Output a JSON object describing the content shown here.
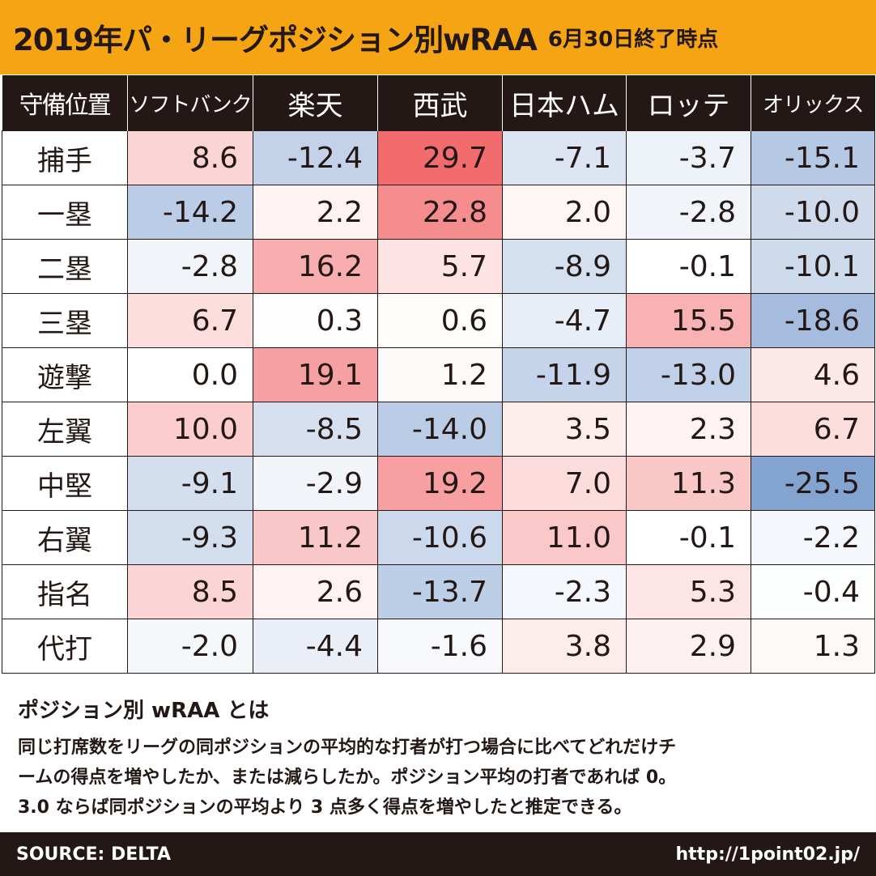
{
  "header": {
    "title": "2019年パ・リーグポジション別wRAA",
    "subtitle": "6月30日終了時点"
  },
  "chart_data": {
    "type": "table",
    "corner_label": "守備位置",
    "columns": [
      "ソフトバンク",
      "楽天",
      "西武",
      "日本ハム",
      "ロッテ",
      "オリックス"
    ],
    "rows": [
      {
        "label": "捕手",
        "values": [
          "8.6",
          "-12.4",
          "29.7",
          "-7.1",
          "-3.7",
          "-15.1"
        ]
      },
      {
        "label": "一塁",
        "values": [
          "-14.2",
          "2.2",
          "22.8",
          "2.0",
          "-2.8",
          "-10.0"
        ]
      },
      {
        "label": "二塁",
        "values": [
          "-2.8",
          "16.2",
          "5.7",
          "-8.9",
          "-0.1",
          "-10.1"
        ]
      },
      {
        "label": "三塁",
        "values": [
          "6.7",
          "0.3",
          "0.6",
          "-4.7",
          "15.5",
          "-18.6"
        ]
      },
      {
        "label": "遊撃",
        "values": [
          "0.0",
          "19.1",
          "1.2",
          "-11.9",
          "-13.0",
          "4.6"
        ]
      },
      {
        "label": "左翼",
        "values": [
          "10.0",
          "-8.5",
          "-14.0",
          "3.5",
          "2.3",
          "6.7"
        ]
      },
      {
        "label": "中堅",
        "values": [
          "-9.1",
          "-2.9",
          "19.2",
          "7.0",
          "11.3",
          "-25.5"
        ]
      },
      {
        "label": "右翼",
        "values": [
          "-9.3",
          "11.2",
          "-10.6",
          "11.0",
          "-0.1",
          "-2.2"
        ]
      },
      {
        "label": "指名",
        "values": [
          "8.5",
          "2.6",
          "-13.7",
          "-2.3",
          "5.3",
          "-0.4"
        ]
      },
      {
        "label": "代打",
        "values": [
          "-2.0",
          "-4.4",
          "-1.6",
          "3.8",
          "2.9",
          "1.3"
        ]
      }
    ],
    "color_scale": {
      "positive": "#f26b6d",
      "negative": "#6f94ca",
      "neutral": "#ffffff"
    }
  },
  "explanation": {
    "title": "ポジション別 wRAA とは",
    "lines": [
      "同じ打席数をリーグの同ポジションの平均的な打者が打つ場合に比べてどれだけチ",
      "ームの得点を増やしたか、または減らしたか。ポジション平均の打者であれば 0。",
      "3.0 ならば同ポジションの平均より 3 点多く得点を増やしたと推定できる。"
    ]
  },
  "footer": {
    "source": "SOURCE: DELTA",
    "url": "http://1point02.jp/"
  },
  "colors": {
    "accent": "#f5a413",
    "dark": "#231815"
  }
}
